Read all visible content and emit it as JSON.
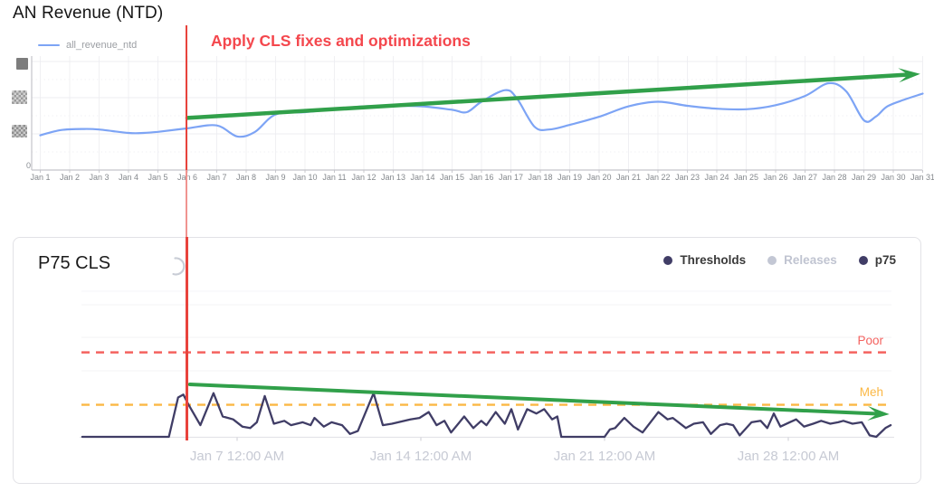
{
  "annotation": {
    "text": "Apply CLS fixes and optimizations",
    "marker_position": "Jan 6"
  },
  "colors": {
    "series_blue": "#7da4f5",
    "trend_green": "#31a04a",
    "annotation_red": "#f4474d",
    "marker_line_red": "#e8433c",
    "p75_navy": "#403d66",
    "poor_red": "#f4625f",
    "meh_orange": "#fbb845",
    "inactive_gray": "#c3c7d4"
  },
  "chart_data": [
    {
      "type": "line",
      "title": "AN Revenue (NTD)",
      "legend": [
        "all_revenue_ntd"
      ],
      "x_axis": {
        "tick_labels": [
          "Jan 1",
          "Jan 2",
          "Jan 3",
          "Jan 4",
          "Jan 5",
          "Jan 6",
          "Jan 7",
          "Jan 8",
          "Jan 9",
          "Jan 10",
          "Jan 11",
          "Jan 12",
          "Jan 13",
          "Jan 14",
          "Jan 15",
          "Jan 16",
          "Jan 17",
          "Jan 18",
          "Jan 19",
          "Jan 20",
          "Jan 21",
          "Jan 22",
          "Jan 23",
          "Jan 24",
          "Jan 25",
          "Jan 26",
          "Jan 27",
          "Jan 28",
          "Jan 29",
          "Jan 30",
          "Jan 31"
        ],
        "range_days": [
          1,
          31
        ]
      },
      "y_axis": {
        "zero_label": "0",
        "upper_labels_redacted": true,
        "value_scale": "relative_0_100"
      },
      "series": [
        {
          "name": "all_revenue_ntd",
          "points_day_value": [
            [
              1,
              30
            ],
            [
              1.7,
              34.5
            ],
            [
              2.5,
              35.5
            ],
            [
              3,
              35
            ],
            [
              4,
              32
            ],
            [
              4.5,
              32
            ],
            [
              5,
              33
            ],
            [
              6,
              36
            ],
            [
              7,
              38.5
            ],
            [
              7.7,
              29
            ],
            [
              8.3,
              33
            ],
            [
              9,
              48
            ],
            [
              10,
              50
            ],
            [
              11,
              52.5
            ],
            [
              12,
              55
            ],
            [
              13,
              55.5
            ],
            [
              14,
              55
            ],
            [
              15,
              52
            ],
            [
              15.5,
              50
            ],
            [
              16,
              59
            ],
            [
              16.8,
              69
            ],
            [
              17.2,
              62
            ],
            [
              17.8,
              37.5
            ],
            [
              18.3,
              35
            ],
            [
              19,
              39
            ],
            [
              20,
              46
            ],
            [
              21,
              55
            ],
            [
              22,
              59
            ],
            [
              23,
              55.5
            ],
            [
              24,
              53
            ],
            [
              25,
              52.5
            ],
            [
              26,
              56
            ],
            [
              27,
              64
            ],
            [
              27.8,
              75
            ],
            [
              28.4,
              68
            ],
            [
              29,
              43
            ],
            [
              29.4,
              46
            ],
            [
              29.8,
              55
            ],
            [
              30.4,
              61
            ],
            [
              31,
              66
            ]
          ]
        }
      ],
      "annotations": {
        "vertical_line_at_day": 6,
        "vertical_line_text": "Apply CLS fixes and optimizations",
        "trend_arrow": {
          "from": [
            6,
            45
          ],
          "to": [
            30.3,
            83
          ]
        }
      }
    },
    {
      "type": "line",
      "title": "P75 CLS",
      "legend_items": [
        {
          "label": "Thresholds",
          "active": true
        },
        {
          "label": "Releases",
          "active": false
        },
        {
          "label": "p75",
          "active": true
        }
      ],
      "x_axis": {
        "tick_labels": [
          "Jan 7 12:00 AM",
          "Jan 14 12:00 AM",
          "Jan 21 12:00 AM",
          "Jan 28 12:00 AM"
        ],
        "tick_days": [
          7,
          14,
          21,
          28
        ]
      },
      "y_axis": {
        "labels_hidden": true,
        "value_scale": "relative_0_100"
      },
      "thresholds": [
        {
          "label": "Poor",
          "value": 58
        },
        {
          "label": "Meh",
          "value": 22
        }
      ],
      "series": [
        {
          "name": "p75",
          "points_day_value": [
            [
              1.1,
              0
            ],
            [
              4.4,
              0
            ],
            [
              4.75,
              27
            ],
            [
              4.95,
              29
            ],
            [
              5.15,
              22
            ],
            [
              5.6,
              8
            ],
            [
              6.1,
              30
            ],
            [
              6.45,
              14
            ],
            [
              6.85,
              12
            ],
            [
              7.2,
              7
            ],
            [
              7.5,
              6
            ],
            [
              7.75,
              10
            ],
            [
              8.05,
              28
            ],
            [
              8.4,
              9
            ],
            [
              8.8,
              11
            ],
            [
              9.05,
              8
            ],
            [
              9.5,
              10
            ],
            [
              9.8,
              8
            ],
            [
              9.95,
              13
            ],
            [
              10.3,
              7
            ],
            [
              10.6,
              10
            ],
            [
              11.0,
              8
            ],
            [
              11.3,
              2
            ],
            [
              11.6,
              4
            ],
            [
              12.2,
              30
            ],
            [
              12.55,
              8
            ],
            [
              12.9,
              9
            ],
            [
              13.6,
              12
            ],
            [
              13.95,
              13
            ],
            [
              14.3,
              17
            ],
            [
              14.6,
              8
            ],
            [
              14.9,
              11
            ],
            [
              15.15,
              3
            ],
            [
              15.65,
              14
            ],
            [
              16.0,
              6
            ],
            [
              16.3,
              11
            ],
            [
              16.5,
              8
            ],
            [
              16.85,
              17
            ],
            [
              17.2,
              9
            ],
            [
              17.45,
              19
            ],
            [
              17.7,
              5
            ],
            [
              18.05,
              19
            ],
            [
              18.4,
              16
            ],
            [
              18.7,
              19
            ],
            [
              19.0,
              12
            ],
            [
              19.2,
              14
            ],
            [
              19.35,
              0
            ],
            [
              21.0,
              0
            ],
            [
              21.2,
              5
            ],
            [
              21.4,
              6
            ],
            [
              21.75,
              13
            ],
            [
              22.1,
              7
            ],
            [
              22.45,
              3
            ],
            [
              23.05,
              17
            ],
            [
              23.4,
              12
            ],
            [
              23.6,
              13
            ],
            [
              24.1,
              6
            ],
            [
              24.4,
              9
            ],
            [
              24.75,
              10
            ],
            [
              25.05,
              2
            ],
            [
              25.4,
              8
            ],
            [
              25.65,
              9
            ],
            [
              25.9,
              8
            ],
            [
              26.15,
              1
            ],
            [
              26.6,
              10
            ],
            [
              26.95,
              11
            ],
            [
              27.2,
              6
            ],
            [
              27.45,
              16
            ],
            [
              27.7,
              7
            ],
            [
              28.05,
              10
            ],
            [
              28.3,
              12
            ],
            [
              28.6,
              7
            ],
            [
              28.95,
              9
            ],
            [
              29.25,
              11
            ],
            [
              29.6,
              9
            ],
            [
              29.9,
              10
            ],
            [
              30.1,
              11
            ],
            [
              30.45,
              9
            ],
            [
              30.8,
              10
            ],
            [
              31.1,
              1
            ],
            [
              31.35,
              0
            ],
            [
              31.7,
              6
            ],
            [
              31.9,
              8
            ]
          ]
        }
      ],
      "annotations": {
        "trend_arrow": {
          "from": [
            5.2,
            36
          ],
          "to": [
            31.85,
            15.5
          ]
        }
      }
    }
  ]
}
